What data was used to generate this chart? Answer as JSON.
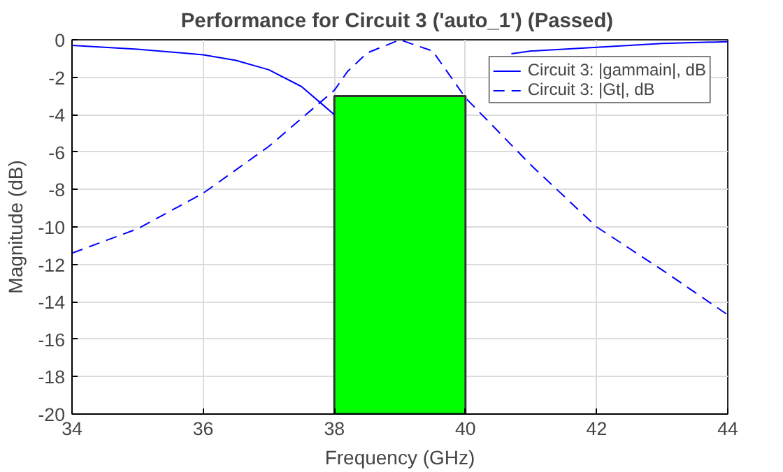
{
  "chart_data": {
    "type": "line",
    "title": "Performance for Circuit 3 ('auto_1')  (Passed)",
    "xlabel": "Frequency (GHz)",
    "ylabel": "Magnitude (dB)",
    "xlim": [
      34,
      44
    ],
    "ylim": [
      -20,
      0
    ],
    "xticks": [
      34,
      36,
      38,
      40,
      42,
      44
    ],
    "yticks": [
      -20,
      -18,
      -16,
      -14,
      -12,
      -10,
      -8,
      -6,
      -4,
      -2,
      0
    ],
    "grid": true,
    "legend": "top right",
    "series": [
      {
        "type": "bar",
        "color": "#00ff00",
        "x": [
          39
        ],
        "base": [
          -20
        ],
        "values": [
          17
        ]
      },
      {
        "name": "Circuit 3: |gammain|, dB",
        "color": "#0000ff",
        "line_style": "solid",
        "x": [
          34,
          35,
          36,
          36.5,
          37,
          37.5,
          37.8,
          38,
          39,
          40.7,
          41,
          42,
          43,
          44
        ],
        "values": [
          -0.3,
          -0.5,
          -0.8,
          -1.1,
          -1.6,
          -2.5,
          -3.4,
          -4.0,
          null,
          -0.75,
          -0.6,
          -0.4,
          -0.2,
          -0.1
        ]
      },
      {
        "name": "Circuit 3: |Gt|, dB",
        "color": "#0000ff",
        "line_style": "dashed",
        "x": [
          34,
          35,
          36,
          37,
          37.5,
          38,
          38.2,
          38.5,
          39,
          39.5,
          40,
          40.5,
          41,
          42,
          43,
          44
        ],
        "values": [
          -11.4,
          -10.1,
          -8.2,
          -5.7,
          -4.2,
          -2.7,
          -1.7,
          -0.7,
          0,
          -0.6,
          -3.1,
          -4.9,
          -6.7,
          -10.0,
          -12.3,
          -14.7
        ]
      }
    ]
  }
}
